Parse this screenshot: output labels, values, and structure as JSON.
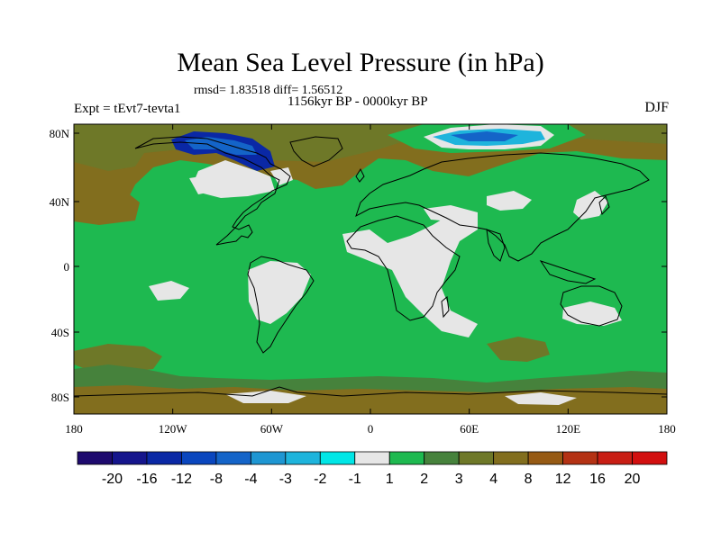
{
  "title": "Mean Sea Level Pressure (in hPa)",
  "stats_line": "rmsd= 1.83518 diff= 1.56512",
  "period_line": "1156kyr BP - 0000kyr BP",
  "experiment_label": "Expt = tEvt7-tevta1",
  "season_label": "DJF",
  "y_axis_ticks": [
    "80N",
    "40N",
    "0",
    "40S",
    "80S"
  ],
  "x_axis_ticks": [
    "180",
    "120W",
    "60W",
    "0",
    "60E",
    "120E",
    "180"
  ],
  "colorbar": {
    "labels": [
      "-20",
      "-16",
      "-12",
      "-8",
      "-4",
      "-3",
      "-2",
      "-1",
      "1",
      "2",
      "3",
      "4",
      "8",
      "12",
      "16",
      "20"
    ],
    "colors": [
      "#1e0a6e",
      "#15158c",
      "#0a28a5",
      "#0a46be",
      "#1464c8",
      "#1e96d2",
      "#1eb4dc",
      "#00e6e6",
      "#e6e6e6",
      "#1eb950",
      "#46823c",
      "#6e7828",
      "#826e1e",
      "#965a14",
      "#b43214",
      "#c81e14",
      "#d20f0f"
    ]
  },
  "map_colors": {
    "background": "#1eb950",
    "neutral": "#e6e6e6",
    "positive_3": "#46823c",
    "positive_4": "#6e7828",
    "positive_8": "#826e1e",
    "negative_8": "#0a28a5",
    "negative_4": "#1464c8",
    "negative_2": "#1eb4dc",
    "coastline": "#000000"
  }
}
